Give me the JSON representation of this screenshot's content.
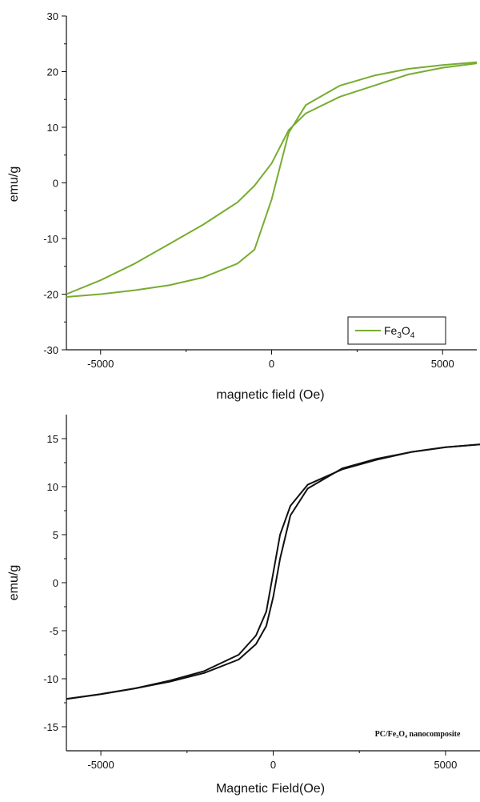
{
  "chart_data": [
    {
      "type": "line",
      "xlabel": "magnetic field (Oe)",
      "ylabel": "emu/g",
      "xlim": [
        -6000,
        6000
      ],
      "ylim": [
        -30,
        30
      ],
      "xticks": [
        -5000,
        0,
        5000
      ],
      "yticks": [
        30,
        20,
        10,
        0,
        -10,
        -20,
        -30
      ],
      "tick_labels_x": [
        "-5000",
        "0",
        "5000"
      ],
      "tick_labels_y": [
        "30",
        "20",
        "10",
        "0",
        "-10",
        "-20",
        "-30"
      ],
      "legend": {
        "position": "bottom-right",
        "main": "Fe",
        "sub1": "3",
        "mid": "O",
        "sub2": "4"
      },
      "color": "#77ac30",
      "series": [
        {
          "name": "Fe3O4",
          "x": [
            -6000,
            -5000,
            -4000,
            -3000,
            -2000,
            -1000,
            -500,
            0,
            500,
            1000,
            2000,
            3000,
            4000,
            5000,
            6000
          ],
          "y": [
            -20.5,
            -20.0,
            -19.3,
            -18.4,
            -17.0,
            -14.5,
            -12.0,
            -3.0,
            9.0,
            14.0,
            17.5,
            19.3,
            20.5,
            21.2,
            21.7
          ]
        },
        {
          "name": "Fe3O4",
          "x": [
            -6000,
            -5000,
            -4000,
            -3000,
            -2000,
            -1000,
            -500,
            0,
            500,
            1000,
            2000,
            3000,
            4000,
            5000,
            6000
          ],
          "y": [
            -20.0,
            -17.5,
            -14.5,
            -11.0,
            -7.5,
            -3.5,
            -0.5,
            3.5,
            9.5,
            12.5,
            15.5,
            17.5,
            19.5,
            20.7,
            21.5
          ]
        }
      ]
    },
    {
      "type": "line",
      "xlabel": "Magnetic Field(Oe)",
      "ylabel": "emu/g",
      "xlim": [
        -6000,
        6000
      ],
      "ylim": [
        -17.5,
        17.5
      ],
      "xticks": [
        -5000,
        0,
        5000
      ],
      "yticks": [
        15,
        10,
        5,
        0,
        -5,
        -10,
        -15
      ],
      "tick_labels_x": [
        "-5000",
        "0",
        "5000"
      ],
      "tick_labels_y": [
        "15",
        "10",
        "5",
        "0",
        "-5",
        "-10",
        "-15"
      ],
      "legend": {
        "position": "bottom-right",
        "text": "PC/Fe₃O₄ nanocomposite"
      },
      "color": "#111111",
      "series": [
        {
          "name": "PC/Fe3O4 nanocomposite",
          "x": [
            -6000,
            -5000,
            -4000,
            -3000,
            -2000,
            -1000,
            -500,
            -200,
            0,
            200,
            500,
            1000,
            2000,
            3000,
            4000,
            5000,
            6000
          ],
          "y": [
            -12.1,
            -11.6,
            -11.0,
            -10.2,
            -9.2,
            -7.5,
            -5.5,
            -3.0,
            1.0,
            5.0,
            8.0,
            10.2,
            11.8,
            12.8,
            13.6,
            14.1,
            14.4
          ]
        },
        {
          "name": "PC/Fe3O4 nanocomposite",
          "x": [
            -6000,
            -5000,
            -4000,
            -3000,
            -2000,
            -1000,
            -500,
            -200,
            0,
            200,
            500,
            1000,
            2000,
            3000,
            4000,
            5000,
            6000
          ],
          "y": [
            -12.1,
            -11.6,
            -11.0,
            -10.3,
            -9.4,
            -8.0,
            -6.4,
            -4.5,
            -1.5,
            2.5,
            7.0,
            9.8,
            11.9,
            12.9,
            13.6,
            14.1,
            14.4
          ]
        }
      ]
    }
  ]
}
